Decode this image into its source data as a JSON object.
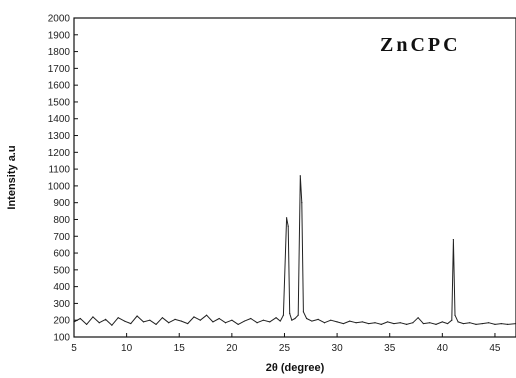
{
  "chart_data": {
    "type": "line",
    "title": "",
    "annotation": "ZnCPC",
    "xlabel": "2θ (degree)",
    "ylabel": "Intensity a.u",
    "xlim": [
      5,
      47
    ],
    "ylim": [
      100,
      2000
    ],
    "xticks": [
      5,
      10,
      15,
      20,
      25,
      30,
      35,
      40,
      45
    ],
    "xtick_labels": [
      "5",
      "10",
      "15",
      "20",
      "25",
      "30",
      "35",
      "40",
      "45"
    ],
    "yticks": [
      100,
      200,
      300,
      400,
      500,
      600,
      700,
      800,
      900,
      1000,
      1100,
      1200,
      1300,
      1400,
      1500,
      1600,
      1700,
      1800,
      1900,
      2000
    ],
    "ytick_labels": [
      "100",
      "200",
      "300",
      "400",
      "500",
      "600",
      "700",
      "800",
      "900",
      "1000",
      "1100",
      "1200",
      "1300",
      "1400",
      "1500",
      "1600",
      "1700",
      "1800",
      "1900",
      "2000"
    ],
    "grid": false,
    "line_color": "#222222",
    "series": [
      {
        "x": [
          5,
          5.6,
          6.2,
          6.8,
          7.4,
          8,
          8.6,
          9.2,
          9.8,
          10.4,
          11,
          11.6,
          12.2,
          12.8,
          13.4,
          14,
          14.6,
          15.2,
          15.8,
          16.4,
          17,
          17.6,
          18.2,
          18.8,
          19.4,
          20,
          20.6,
          21.2,
          21.8,
          22.4,
          23,
          23.6,
          24.2,
          24.6,
          24.9,
          25.2,
          25.35,
          25.5,
          25.7,
          26,
          26.3,
          26.5,
          26.65,
          26.8,
          27.1,
          27.6,
          28.2,
          28.8,
          29.4,
          30,
          30.6,
          31.2,
          31.8,
          32.4,
          33,
          33.6,
          34.2,
          34.8,
          35.4,
          36,
          36.6,
          37.2,
          37.7,
          38.2,
          38.8,
          39.4,
          40,
          40.5,
          40.9,
          41.05,
          41.2,
          41.5,
          42,
          42.6,
          43.2,
          43.8,
          44.4,
          45,
          45.6,
          46.2,
          47
        ],
        "y": [
          190,
          210,
          175,
          220,
          185,
          205,
          170,
          215,
          195,
          180,
          225,
          190,
          200,
          175,
          215,
          185,
          205,
          195,
          180,
          220,
          200,
          230,
          190,
          210,
          185,
          200,
          175,
          195,
          210,
          185,
          200,
          190,
          215,
          195,
          230,
          810,
          760,
          240,
          200,
          210,
          230,
          1060,
          900,
          250,
          210,
          195,
          205,
          185,
          200,
          190,
          180,
          195,
          185,
          190,
          180,
          185,
          175,
          190,
          180,
          185,
          175,
          185,
          215,
          180,
          185,
          175,
          190,
          180,
          200,
          680,
          230,
          190,
          180,
          185,
          175,
          180,
          185,
          175,
          180,
          175,
          180
        ]
      }
    ]
  }
}
